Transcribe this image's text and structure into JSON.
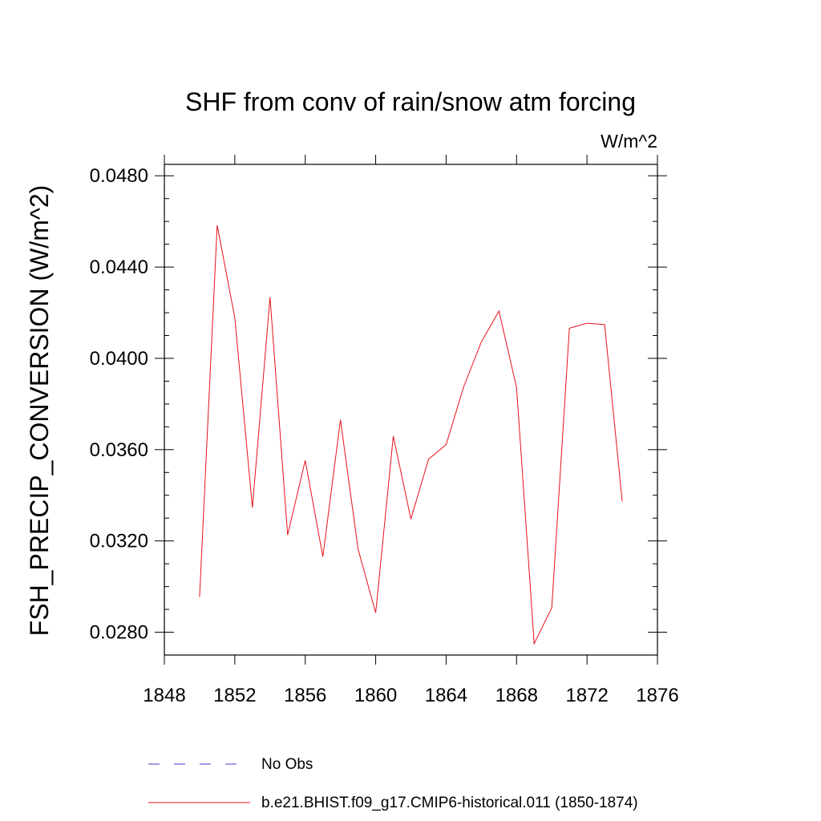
{
  "chart_data": {
    "type": "line",
    "title": "SHF from conv of rain/snow atm forcing",
    "units_label": "W/m^2",
    "xlabel": "",
    "ylabel": "FSH_PRECIP_CONVERSION  (W/m^2)",
    "xlim": [
      1848,
      1876
    ],
    "ylim": [
      0.027,
      0.0485
    ],
    "x_ticks": [
      1848,
      1852,
      1856,
      1860,
      1864,
      1868,
      1872,
      1876
    ],
    "x_tick_labels": [
      "1848",
      "1852",
      "1856",
      "1860",
      "1864",
      "1868",
      "1872",
      "1876"
    ],
    "y_ticks": [
      0.028,
      0.032,
      0.036,
      0.04,
      0.044,
      0.048
    ],
    "y_tick_labels": [
      "0.0280",
      "0.0320",
      "0.0360",
      "0.0400",
      "0.0440",
      "0.0480"
    ],
    "grid": false,
    "legend_position": "bottom",
    "series": [
      {
        "name": "b.e21.BHIST.f09_g17.CMIP6-historical.011 (1850-1874)",
        "color": "#e8101a",
        "style": "solid",
        "x": [
          1850,
          1851,
          1852,
          1853,
          1854,
          1855,
          1856,
          1857,
          1858,
          1859,
          1860,
          1861,
          1862,
          1863,
          1864,
          1865,
          1866,
          1867,
          1868,
          1869,
          1870,
          1871,
          1872,
          1873,
          1874
        ],
        "y": [
          0.02955,
          0.04583,
          0.04178,
          0.03346,
          0.04268,
          0.03226,
          0.03553,
          0.03131,
          0.03731,
          0.03164,
          0.02885,
          0.03659,
          0.03296,
          0.03558,
          0.03622,
          0.03876,
          0.04072,
          0.04207,
          0.03872,
          0.0275,
          0.02907,
          0.04132,
          0.04154,
          0.04148,
          0.03373
        ]
      }
    ],
    "legend": [
      {
        "label": "No Obs",
        "color": "#3c3cc8",
        "style": "dashed"
      },
      {
        "label": "b.e21.BHIST.f09_g17.CMIP6-historical.011 (1850-1874)",
        "color": "#e8101a",
        "style": "solid"
      }
    ]
  }
}
